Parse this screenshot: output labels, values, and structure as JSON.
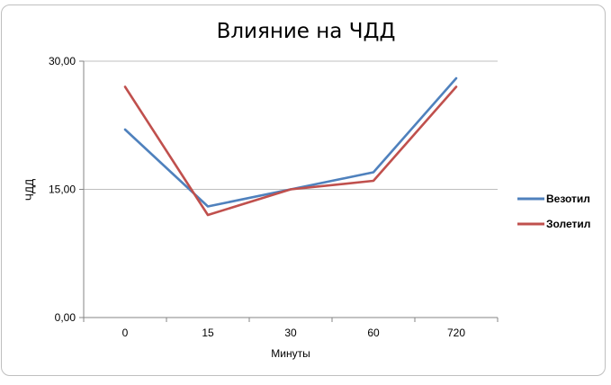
{
  "chart_data": {
    "type": "line",
    "title": "Влияние на ЧДД",
    "xlabel": "Минуты",
    "ylabel": "ЧДД",
    "categories": [
      "0",
      "15",
      "30",
      "60",
      "720"
    ],
    "ylim": [
      0,
      30
    ],
    "yticks": [
      0,
      15,
      30
    ],
    "ytick_labels": [
      "0,00",
      "15,00",
      "30,00"
    ],
    "grid": true,
    "legend_position": "right",
    "series": [
      {
        "name": "Везотил",
        "color": "#4f81bd",
        "values": [
          22,
          13,
          15,
          17,
          28
        ]
      },
      {
        "name": "Золетил",
        "color": "#c0504d",
        "values": [
          27,
          12,
          15,
          16,
          27
        ]
      }
    ]
  }
}
